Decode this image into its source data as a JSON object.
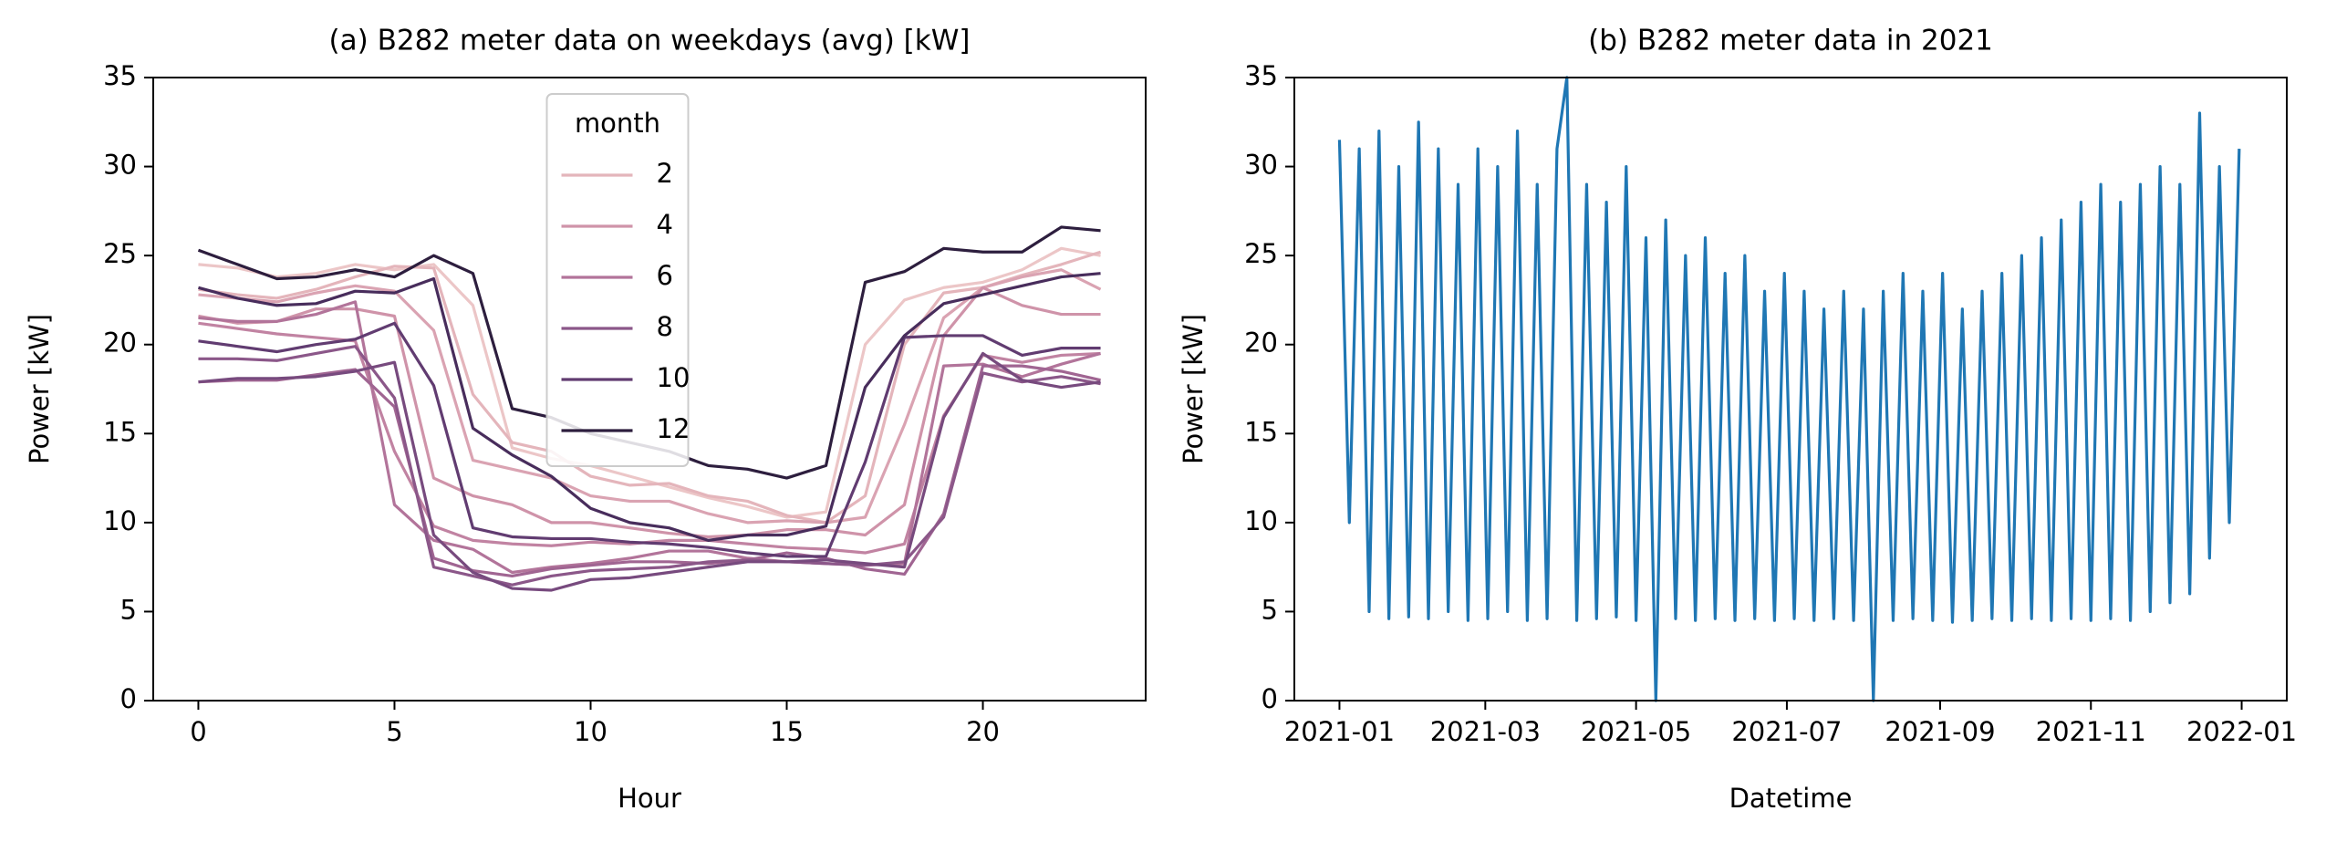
{
  "chart_data": [
    {
      "type": "line",
      "title": "(a) B282 meter data on weekdays (avg) [kW]",
      "x_label": "Hour",
      "y_label": "Power [kW]",
      "x": [
        0,
        1,
        2,
        3,
        4,
        5,
        6,
        7,
        8,
        9,
        10,
        11,
        12,
        13,
        14,
        15,
        16,
        17,
        18,
        19,
        20,
        21,
        22,
        23
      ],
      "xlim": [
        -1.15,
        24.15
      ],
      "xticks": [
        0,
        5,
        10,
        15,
        20
      ],
      "ylim": [
        0,
        35
      ],
      "yticks": [
        0,
        5,
        10,
        15,
        20,
        25,
        30,
        35
      ],
      "legend_title": "month",
      "legend_loc": "upper center",
      "series": [
        {
          "color": "#ecc6c7",
          "values": [
            24.5,
            24.3,
            23.8,
            24,
            24.5,
            24.2,
            24.5,
            22.2,
            14.2,
            13.6,
            13.2,
            12.6,
            12,
            11.4,
            10.9,
            10.3,
            10.6,
            20,
            22.5,
            23.2,
            23.5,
            24.2,
            25.4,
            25
          ]
        },
        {
          "name": "2",
          "color": "#e4b5bb",
          "values": [
            23.1,
            22.8,
            22.6,
            23.1,
            23.8,
            24.4,
            24.3,
            17.2,
            14.5,
            14,
            12.6,
            12.1,
            12.2,
            11.5,
            11.2,
            10.4,
            10,
            11.5,
            20,
            22.9,
            23.2,
            23.9,
            24.5,
            25.2
          ]
        },
        {
          "color": "#daa3b2",
          "values": [
            22.8,
            22.6,
            22.4,
            22.9,
            23.3,
            23,
            20.8,
            13.5,
            13,
            12.5,
            11.5,
            11.2,
            11.2,
            10.5,
            10,
            10.1,
            10,
            10.3,
            15.5,
            21.5,
            23.2,
            23.8,
            24.2,
            23.1
          ]
        },
        {
          "name": "4",
          "color": "#cf93a9",
          "values": [
            21.6,
            21.2,
            21.3,
            22,
            22,
            21.6,
            12.5,
            11.5,
            11,
            10,
            10,
            9.7,
            9.4,
            9.2,
            9.3,
            9.6,
            9.6,
            9.3,
            11,
            20.5,
            23.2,
            22.2,
            21.7,
            21.7
          ]
        },
        {
          "color": "#c183a2",
          "values": [
            21.2,
            20.9,
            20.6,
            20.4,
            20.2,
            14,
            9.8,
            9,
            8.8,
            8.7,
            8.9,
            8.8,
            9,
            9,
            8.8,
            8.6,
            8.5,
            8.3,
            8.8,
            16,
            19.4,
            19,
            19.4,
            19.5
          ]
        },
        {
          "name": "6",
          "color": "#b2749a",
          "values": [
            21.5,
            21.3,
            21.3,
            21.7,
            22.4,
            11,
            9,
            8.5,
            7.2,
            7.5,
            7.7,
            8,
            8.4,
            8.4,
            8,
            7.8,
            7.7,
            7.6,
            7.7,
            18.8,
            18.9,
            18.2,
            18.9,
            19.5
          ]
        },
        {
          "color": "#a06592",
          "values": [
            17.9,
            18,
            18,
            18.3,
            18.6,
            16.5,
            8,
            7.3,
            7,
            7.4,
            7.6,
            7.8,
            7.8,
            7.7,
            7.9,
            8.3,
            8,
            7.4,
            7.1,
            10.5,
            18.8,
            18.8,
            18.5,
            18
          ]
        },
        {
          "name": "8",
          "color": "#8b5789",
          "values": [
            19.2,
            19.2,
            19.1,
            19.5,
            19.9,
            17,
            7.5,
            7,
            6.5,
            7,
            7.3,
            7.4,
            7.5,
            7.8,
            7.9,
            7.8,
            7.7,
            7.6,
            7.8,
            10.3,
            18.4,
            17.9,
            18.2,
            17.8
          ]
        },
        {
          "color": "#774a7e",
          "values": [
            17.9,
            18.1,
            18.1,
            18.2,
            18.5,
            19,
            9.3,
            7.2,
            6.3,
            6.2,
            6.8,
            6.9,
            7.2,
            7.5,
            7.8,
            7.8,
            7.9,
            7.7,
            7.5,
            15.9,
            19.5,
            18,
            17.6,
            17.9
          ]
        },
        {
          "name": "10",
          "color": "#613c71",
          "values": [
            20.2,
            19.9,
            19.6,
            20,
            20.3,
            21.2,
            17.7,
            9.7,
            9.2,
            9.1,
            9.1,
            8.9,
            8.8,
            8.6,
            8.3,
            8.1,
            8.1,
            13.4,
            20.4,
            20.5,
            20.5,
            19.4,
            19.8,
            19.8
          ]
        },
        {
          "color": "#482d5c",
          "values": [
            23.2,
            22.6,
            22.2,
            22.3,
            23,
            22.9,
            23.7,
            15.3,
            13.8,
            12.6,
            10.8,
            10,
            9.7,
            9,
            9.3,
            9.3,
            9.8,
            17.6,
            20.5,
            22.3,
            22.8,
            23.3,
            23.8,
            24
          ]
        },
        {
          "name": "12",
          "color": "#2d1e3e",
          "values": [
            25.3,
            24.5,
            23.7,
            23.8,
            24.2,
            23.8,
            25,
            24,
            16.4,
            15.9,
            15,
            14.5,
            14,
            13.2,
            13,
            12.5,
            13.2,
            23.5,
            24.1,
            25.4,
            25.2,
            25.2,
            26.6,
            26.4
          ]
        }
      ]
    },
    {
      "type": "line",
      "title": "(b) B282 meter data in 2021",
      "x_label": "Datetime",
      "y_label": "Power [kW]",
      "x": [
        0,
        4,
        8,
        12,
        16,
        20,
        24,
        28,
        32,
        36,
        40,
        44,
        48,
        52,
        56,
        60,
        64,
        68,
        72,
        76,
        80,
        84,
        88,
        92,
        96,
        100,
        104,
        108,
        112,
        116,
        120,
        124,
        128,
        132,
        136,
        140,
        144,
        148,
        152,
        156,
        160,
        164,
        168,
        172,
        176,
        180,
        184,
        188,
        192,
        196,
        200,
        204,
        208,
        212,
        216,
        220,
        224,
        228,
        232,
        236,
        240,
        244,
        248,
        252,
        256,
        260,
        264,
        268,
        272,
        276,
        280,
        284,
        288,
        292,
        296,
        300,
        304,
        308,
        312,
        316,
        320,
        324,
        328,
        332,
        336,
        340,
        344,
        348,
        352,
        356,
        360,
        364
      ],
      "xlim": [
        -18.25,
        383.25
      ],
      "xticks": [
        {
          "value": 0,
          "label": "2021-01"
        },
        {
          "value": 59,
          "label": "2021-03"
        },
        {
          "value": 120,
          "label": "2021-05"
        },
        {
          "value": 181,
          "label": "2021-07"
        },
        {
          "value": 243,
          "label": "2021-09"
        },
        {
          "value": 304,
          "label": "2021-11"
        },
        {
          "value": 365,
          "label": "2022-01"
        }
      ],
      "ylim": [
        0,
        35
      ],
      "yticks": [
        0,
        5,
        10,
        15,
        20,
        25,
        30,
        35
      ],
      "series": [
        {
          "color": "#1f77b4",
          "values": [
            31.5,
            10,
            31,
            5,
            32,
            4.6,
            30,
            4.7,
            32.5,
            4.6,
            31,
            5,
            29,
            4.5,
            31,
            4.6,
            30,
            5,
            32,
            4.5,
            29,
            4.6,
            31,
            35,
            4.5,
            29,
            4.6,
            28,
            4.7,
            30,
            4.5,
            26,
            0,
            27,
            4.6,
            25,
            4.5,
            26,
            4.6,
            24,
            4.5,
            25,
            4.6,
            23,
            4.5,
            24,
            4.6,
            23,
            4.5,
            22,
            4.6,
            23,
            4.5,
            22,
            0,
            23,
            4.5,
            24,
            4.6,
            23,
            4.5,
            24,
            4.4,
            22,
            4.5,
            23,
            4.6,
            24,
            4.5,
            25,
            4.6,
            26,
            4.5,
            27,
            4.6,
            28,
            4.5,
            29,
            4.6,
            28,
            4.5,
            29,
            5,
            30,
            5.5,
            29,
            6,
            33,
            8,
            30,
            10,
            31
          ]
        }
      ]
    }
  ]
}
